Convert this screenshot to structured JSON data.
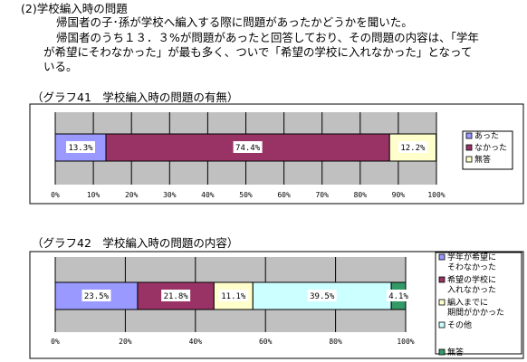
{
  "text": {
    "heading": "(2)学校編入時の問題",
    "para1": "帰国者の子･孫が学校へ編入する際に問題があったかどうかを聞いた。",
    "para2a": "帰国者のうち１３．３%が問題があったと回答しており、その問題の内容は、「学年",
    "para2b": "が希望にそわなかった」が最も多く、ついで「希望の学校に入れなかった」となって",
    "para2c": "いる。"
  },
  "chart_data": [
    {
      "type": "bar",
      "orientation": "horizontal-stacked",
      "title": "（グラフ41　学校編入時の問題の有無）",
      "series": [
        {
          "name": "あった",
          "value": 13.3,
          "label": "13.3%",
          "color": "#9999ff"
        },
        {
          "name": "なかった",
          "value": 74.4,
          "label": "74.4%",
          "color": "#993366"
        },
        {
          "name": "無答",
          "value": 12.2,
          "label": "12.2%",
          "color": "#ffffcc"
        }
      ],
      "xticks": [
        "0%",
        "10%",
        "20%",
        "30%",
        "40%",
        "50%",
        "60%",
        "70%",
        "80%",
        "90%",
        "100%"
      ],
      "xlim": [
        0,
        100
      ],
      "grid": true,
      "legend": "right"
    },
    {
      "type": "bar",
      "orientation": "horizontal-stacked",
      "title": "（グラフ42　学校編入時の問題の内容）",
      "series": [
        {
          "name": "学年が希望にそわなかった",
          "value": 23.5,
          "label": "23.5%",
          "color": "#9999ff",
          "legend_lines": [
            "学年が希望に",
            "そわなかった"
          ]
        },
        {
          "name": "希望の学校に入れなかった",
          "value": 21.8,
          "label": "21.8%",
          "color": "#993366",
          "legend_lines": [
            "希望の学校に",
            "入れなかった"
          ]
        },
        {
          "name": "編入までに期間がかかった",
          "value": 11.1,
          "label": "11.1%",
          "color": "#ffffcc",
          "legend_lines": [
            "編入までに",
            "期間がかかった"
          ]
        },
        {
          "name": "その他",
          "value": 39.5,
          "label": "39.5%",
          "color": "#ccffff",
          "legend_lines": [
            "その他"
          ]
        },
        {
          "name": "無答",
          "value": 4.1,
          "label": "4.1%",
          "color": "#339966",
          "legend_lines": [
            "無答"
          ]
        }
      ],
      "xticks": [
        "0%",
        "20%",
        "40%",
        "60%",
        "80%",
        "100%"
      ],
      "xlim": [
        0,
        100
      ],
      "grid": true,
      "legend": "right"
    }
  ]
}
